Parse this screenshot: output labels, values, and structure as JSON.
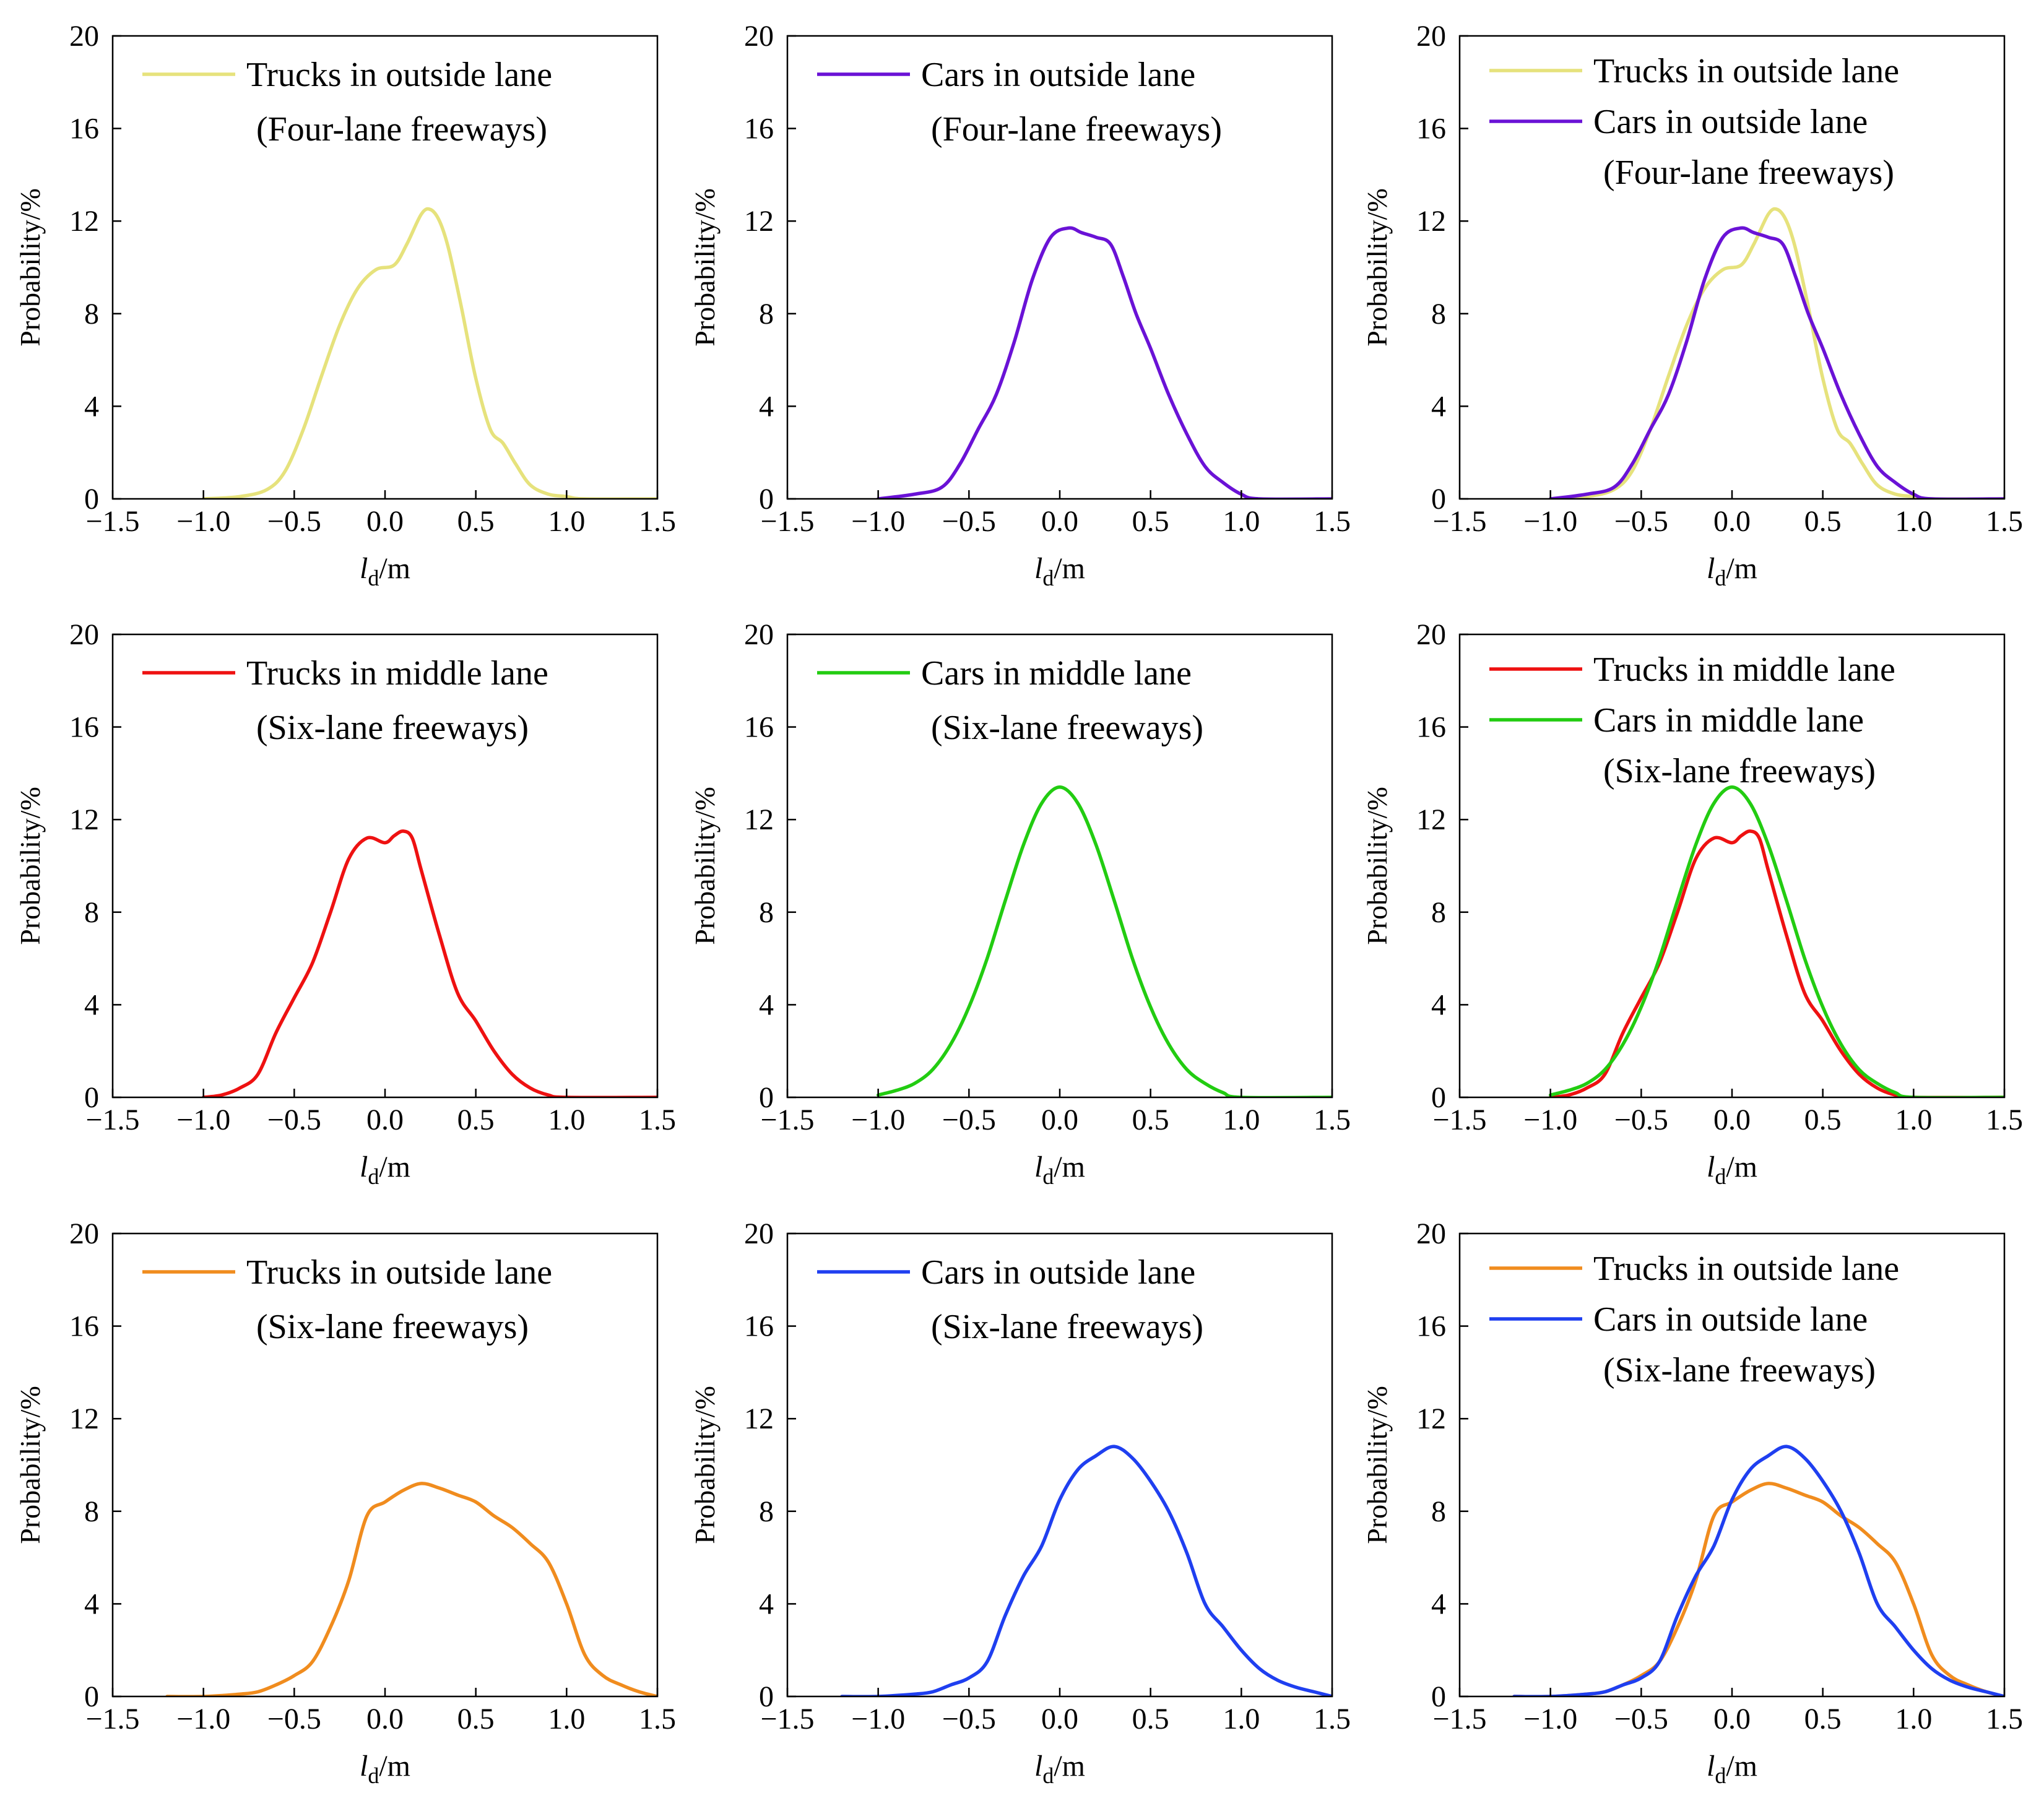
{
  "chart_data": [
    {
      "type": "line",
      "xlabel": "l_d/m",
      "ylabel": "Probability/%",
      "xlim": [
        -1.5,
        1.5
      ],
      "ylim": [
        0,
        20
      ],
      "xticks": [
        "−1.5",
        "−1.0",
        "−0.5",
        "0.0",
        "0.5",
        "1.0",
        "1.5"
      ],
      "yticks": [
        "0",
        "4",
        "8",
        "12",
        "16",
        "20"
      ],
      "legend_note": "(Four-lane freeways)",
      "series": [
        {
          "name": "Trucks in outside lane",
          "color": "#e6e27c",
          "x": [
            -1.0,
            -0.8,
            -0.65,
            -0.55,
            -0.45,
            -0.35,
            -0.25,
            -0.15,
            -0.05,
            0.05,
            0.12,
            0.2,
            0.25,
            0.3,
            0.35,
            0.42,
            0.5,
            0.58,
            0.65,
            0.72,
            0.8,
            0.9,
            1.0,
            1.1,
            1.5
          ],
          "y": [
            0,
            0.1,
            0.4,
            1.2,
            3.0,
            5.3,
            7.5,
            9.1,
            9.9,
            10.1,
            11.0,
            12.3,
            12.5,
            12.0,
            10.8,
            8.3,
            5.2,
            3.0,
            2.4,
            1.5,
            0.6,
            0.2,
            0.1,
            0,
            0
          ]
        }
      ]
    },
    {
      "type": "line",
      "xlabel": "l_d/m",
      "ylabel": "Probability/%",
      "xlim": [
        -1.5,
        1.5
      ],
      "ylim": [
        0,
        20
      ],
      "xticks": [
        "−1.5",
        "−1.0",
        "−0.5",
        "0.0",
        "0.5",
        "1.0",
        "1.5"
      ],
      "yticks": [
        "0",
        "4",
        "8",
        "12",
        "16",
        "20"
      ],
      "legend_note": "(Four-lane freeways)",
      "series": [
        {
          "name": "Cars in outside lane",
          "color": "#6a12d6",
          "x": [
            -1.0,
            -0.8,
            -0.65,
            -0.55,
            -0.45,
            -0.35,
            -0.25,
            -0.15,
            -0.05,
            0.05,
            0.12,
            0.2,
            0.28,
            0.35,
            0.42,
            0.5,
            0.6,
            0.7,
            0.8,
            0.9,
            1.0,
            1.1,
            1.5
          ],
          "y": [
            0,
            0.2,
            0.5,
            1.5,
            3.0,
            4.5,
            6.8,
            9.5,
            11.3,
            11.7,
            11.5,
            11.3,
            11.0,
            9.6,
            8.0,
            6.5,
            4.5,
            2.8,
            1.4,
            0.7,
            0.2,
            0,
            0
          ]
        }
      ]
    },
    {
      "type": "line",
      "xlabel": "l_d/m",
      "ylabel": "Probability/%",
      "xlim": [
        -1.5,
        1.5
      ],
      "ylim": [
        0,
        20
      ],
      "xticks": [
        "−1.5",
        "−1.0",
        "−0.5",
        "0.0",
        "0.5",
        "1.0",
        "1.5"
      ],
      "yticks": [
        "0",
        "4",
        "8",
        "12",
        "16",
        "20"
      ],
      "legend_note": "(Four-lane freeways)",
      "series": [
        {
          "name": "Trucks in outside lane",
          "color": "#e6e27c",
          "x": [
            -1.0,
            -0.8,
            -0.65,
            -0.55,
            -0.45,
            -0.35,
            -0.25,
            -0.15,
            -0.05,
            0.05,
            0.12,
            0.2,
            0.25,
            0.3,
            0.35,
            0.42,
            0.5,
            0.58,
            0.65,
            0.72,
            0.8,
            0.9,
            1.0,
            1.1,
            1.5
          ],
          "y": [
            0,
            0.1,
            0.4,
            1.2,
            3.0,
            5.3,
            7.5,
            9.1,
            9.9,
            10.1,
            11.0,
            12.3,
            12.5,
            12.0,
            10.8,
            8.3,
            5.2,
            3.0,
            2.4,
            1.5,
            0.6,
            0.2,
            0.1,
            0,
            0
          ]
        },
        {
          "name": "Cars in outside lane",
          "color": "#6a12d6",
          "x": [
            -1.0,
            -0.8,
            -0.65,
            -0.55,
            -0.45,
            -0.35,
            -0.25,
            -0.15,
            -0.05,
            0.05,
            0.12,
            0.2,
            0.28,
            0.35,
            0.42,
            0.5,
            0.6,
            0.7,
            0.8,
            0.9,
            1.0,
            1.1,
            1.5
          ],
          "y": [
            0,
            0.2,
            0.5,
            1.5,
            3.0,
            4.5,
            6.8,
            9.5,
            11.3,
            11.7,
            11.5,
            11.3,
            11.0,
            9.6,
            8.0,
            6.5,
            4.5,
            2.8,
            1.4,
            0.7,
            0.2,
            0,
            0
          ]
        }
      ]
    },
    {
      "type": "line",
      "xlabel": "l_d/m",
      "ylabel": "Probability/%",
      "xlim": [
        -1.5,
        1.5
      ],
      "ylim": [
        0,
        20
      ],
      "xticks": [
        "−1.5",
        "−1.0",
        "−0.5",
        "0.0",
        "0.5",
        "1.0",
        "1.5"
      ],
      "yticks": [
        "0",
        "4",
        "8",
        "12",
        "16",
        "20"
      ],
      "legend_note": "(Six-lane freeways)",
      "series": [
        {
          "name": "Trucks in middle lane",
          "color": "#ee1111",
          "x": [
            -1.0,
            -0.9,
            -0.8,
            -0.7,
            -0.6,
            -0.5,
            -0.4,
            -0.3,
            -0.2,
            -0.1,
            0.0,
            0.05,
            0.1,
            0.15,
            0.2,
            0.3,
            0.4,
            0.5,
            0.6,
            0.7,
            0.8,
            0.9,
            1.0,
            1.5
          ],
          "y": [
            0,
            0.1,
            0.4,
            1.0,
            2.8,
            4.3,
            5.8,
            8.0,
            10.3,
            11.2,
            11.0,
            11.3,
            11.5,
            11.2,
            9.8,
            7.0,
            4.5,
            3.3,
            2.0,
            1.0,
            0.4,
            0.1,
            0,
            0
          ]
        }
      ]
    },
    {
      "type": "line",
      "xlabel": "l_d/m",
      "ylabel": "Probability/%",
      "xlim": [
        -1.5,
        1.5
      ],
      "ylim": [
        0,
        20
      ],
      "xticks": [
        "−1.5",
        "−1.0",
        "−0.5",
        "0.0",
        "0.5",
        "1.0",
        "1.5"
      ],
      "yticks": [
        "0",
        "4",
        "8",
        "12",
        "16",
        "20"
      ],
      "legend_note": "(Six-lane freeways)",
      "series": [
        {
          "name": "Cars in middle lane",
          "color": "#22cc11",
          "x": [
            -1.0,
            -0.9,
            -0.8,
            -0.7,
            -0.6,
            -0.5,
            -0.4,
            -0.3,
            -0.2,
            -0.1,
            0.0,
            0.1,
            0.2,
            0.3,
            0.4,
            0.5,
            0.6,
            0.7,
            0.8,
            0.9,
            1.0,
            1.5
          ],
          "y": [
            0.1,
            0.3,
            0.6,
            1.2,
            2.3,
            3.9,
            6.0,
            8.5,
            10.9,
            12.7,
            13.4,
            12.7,
            10.9,
            8.5,
            6.0,
            3.9,
            2.3,
            1.2,
            0.6,
            0.2,
            0,
            0
          ]
        }
      ]
    },
    {
      "type": "line",
      "xlabel": "l_d/m",
      "ylabel": "Probability/%",
      "xlim": [
        -1.5,
        1.5
      ],
      "ylim": [
        0,
        20
      ],
      "xticks": [
        "−1.5",
        "−1.0",
        "−0.5",
        "0.0",
        "0.5",
        "1.0",
        "1.5"
      ],
      "yticks": [
        "0",
        "4",
        "8",
        "12",
        "16",
        "20"
      ],
      "legend_note": "(Six-lane freeways)",
      "series": [
        {
          "name": "Trucks in middle lane",
          "color": "#ee1111",
          "x": [
            -1.0,
            -0.9,
            -0.8,
            -0.7,
            -0.6,
            -0.5,
            -0.4,
            -0.3,
            -0.2,
            -0.1,
            0.0,
            0.05,
            0.1,
            0.15,
            0.2,
            0.3,
            0.4,
            0.5,
            0.6,
            0.7,
            0.8,
            0.9,
            1.0,
            1.5
          ],
          "y": [
            0,
            0.1,
            0.4,
            1.0,
            2.8,
            4.3,
            5.8,
            8.0,
            10.3,
            11.2,
            11.0,
            11.3,
            11.5,
            11.2,
            9.8,
            7.0,
            4.5,
            3.3,
            2.0,
            1.0,
            0.4,
            0.1,
            0,
            0
          ]
        },
        {
          "name": "Cars in middle lane",
          "color": "#22cc11",
          "x": [
            -1.0,
            -0.9,
            -0.8,
            -0.7,
            -0.6,
            -0.5,
            -0.4,
            -0.3,
            -0.2,
            -0.1,
            0.0,
            0.1,
            0.2,
            0.3,
            0.4,
            0.5,
            0.6,
            0.7,
            0.8,
            0.9,
            1.0,
            1.5
          ],
          "y": [
            0.1,
            0.3,
            0.6,
            1.2,
            2.3,
            3.9,
            6.0,
            8.5,
            10.9,
            12.7,
            13.4,
            12.7,
            10.9,
            8.5,
            6.0,
            3.9,
            2.3,
            1.2,
            0.6,
            0.2,
            0,
            0
          ]
        }
      ]
    },
    {
      "type": "line",
      "xlabel": "l_d/m",
      "ylabel": "Probability/%",
      "xlim": [
        -1.5,
        1.5
      ],
      "ylim": [
        0,
        20
      ],
      "xticks": [
        "−1.5",
        "−1.0",
        "−0.5",
        "0.0",
        "0.5",
        "1.0",
        "1.5"
      ],
      "yticks": [
        "0",
        "4",
        "8",
        "12",
        "16",
        "20"
      ],
      "legend_note": "(Six-lane freeways)",
      "series": [
        {
          "name": "Trucks in outside lane",
          "color": "#f08c1e",
          "x": [
            -1.2,
            -1.0,
            -0.8,
            -0.7,
            -0.6,
            -0.5,
            -0.4,
            -0.3,
            -0.2,
            -0.1,
            0.0,
            0.1,
            0.2,
            0.3,
            0.4,
            0.5,
            0.6,
            0.7,
            0.8,
            0.9,
            1.0,
            1.1,
            1.2,
            1.3,
            1.4,
            1.5
          ],
          "y": [
            0,
            0,
            0.1,
            0.2,
            0.5,
            0.9,
            1.5,
            3.0,
            5.0,
            7.8,
            8.4,
            8.9,
            9.2,
            9.0,
            8.7,
            8.4,
            7.8,
            7.3,
            6.6,
            5.8,
            4.0,
            1.8,
            0.9,
            0.5,
            0.2,
            0
          ]
        }
      ]
    },
    {
      "type": "line",
      "xlabel": "l_d/m",
      "ylabel": "Probability/%",
      "xlim": [
        -1.5,
        1.5
      ],
      "ylim": [
        0,
        20
      ],
      "xticks": [
        "−1.5",
        "−1.0",
        "−0.5",
        "0.0",
        "0.5",
        "1.0",
        "1.5"
      ],
      "yticks": [
        "0",
        "4",
        "8",
        "12",
        "16",
        "20"
      ],
      "legend_note": "(Six-lane freeways)",
      "series": [
        {
          "name": "Cars in outside lane",
          "color": "#1f3ff0",
          "x": [
            -1.2,
            -1.0,
            -0.8,
            -0.7,
            -0.6,
            -0.5,
            -0.4,
            -0.3,
            -0.2,
            -0.1,
            0.0,
            0.1,
            0.2,
            0.3,
            0.4,
            0.5,
            0.6,
            0.7,
            0.8,
            0.9,
            1.0,
            1.1,
            1.2,
            1.3,
            1.4,
            1.5
          ],
          "y": [
            0,
            0,
            0.1,
            0.2,
            0.5,
            0.8,
            1.5,
            3.5,
            5.2,
            6.5,
            8.5,
            9.8,
            10.4,
            10.8,
            10.3,
            9.3,
            8.0,
            6.2,
            4.0,
            3.0,
            2.0,
            1.2,
            0.7,
            0.4,
            0.2,
            0
          ]
        }
      ]
    },
    {
      "type": "line",
      "xlabel": "l_d/m",
      "ylabel": "Probability/%",
      "xlim": [
        -1.5,
        1.5
      ],
      "ylim": [
        0,
        20
      ],
      "xticks": [
        "−1.5",
        "−1.0",
        "−0.5",
        "0.0",
        "0.5",
        "1.0",
        "1.5"
      ],
      "yticks": [
        "0",
        "4",
        "8",
        "12",
        "16",
        "20"
      ],
      "legend_note": "(Six-lane freeways)",
      "series": [
        {
          "name": "Trucks in outside lane",
          "color": "#f08c1e",
          "x": [
            -1.2,
            -1.0,
            -0.8,
            -0.7,
            -0.6,
            -0.5,
            -0.4,
            -0.3,
            -0.2,
            -0.1,
            0.0,
            0.1,
            0.2,
            0.3,
            0.4,
            0.5,
            0.6,
            0.7,
            0.8,
            0.9,
            1.0,
            1.1,
            1.2,
            1.3,
            1.4,
            1.5
          ],
          "y": [
            0,
            0,
            0.1,
            0.2,
            0.5,
            0.9,
            1.5,
            3.0,
            5.0,
            7.8,
            8.4,
            8.9,
            9.2,
            9.0,
            8.7,
            8.4,
            7.8,
            7.3,
            6.6,
            5.8,
            4.0,
            1.8,
            0.9,
            0.5,
            0.2,
            0
          ]
        },
        {
          "name": "Cars in outside lane",
          "color": "#1f3ff0",
          "x": [
            -1.2,
            -1.0,
            -0.8,
            -0.7,
            -0.6,
            -0.5,
            -0.4,
            -0.3,
            -0.2,
            -0.1,
            0.0,
            0.1,
            0.2,
            0.3,
            0.4,
            0.5,
            0.6,
            0.7,
            0.8,
            0.9,
            1.0,
            1.1,
            1.2,
            1.3,
            1.4,
            1.5
          ],
          "y": [
            0,
            0,
            0.1,
            0.2,
            0.5,
            0.8,
            1.5,
            3.5,
            5.2,
            6.5,
            8.5,
            9.8,
            10.4,
            10.8,
            10.3,
            9.3,
            8.0,
            6.2,
            4.0,
            3.0,
            2.0,
            1.2,
            0.7,
            0.4,
            0.2,
            0
          ]
        }
      ]
    }
  ]
}
